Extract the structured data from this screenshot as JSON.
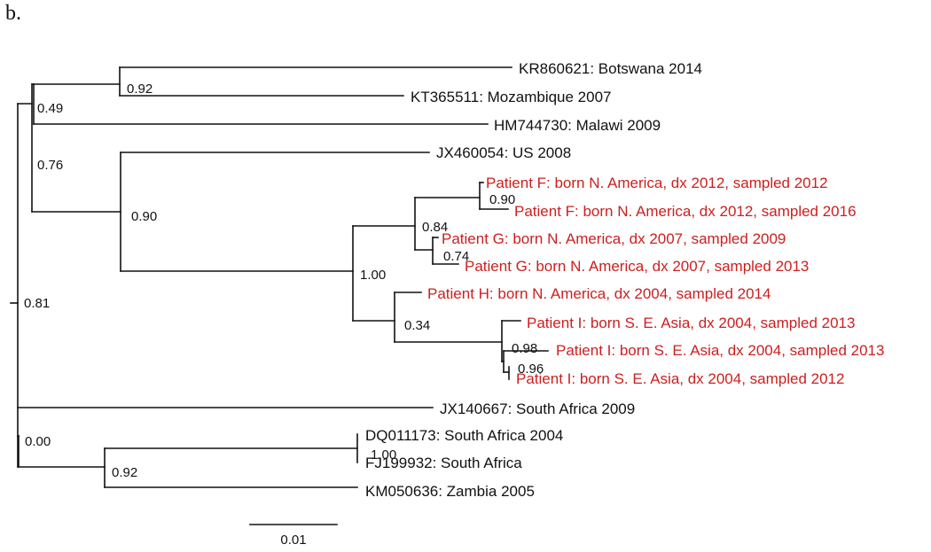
{
  "panel_label": "b.",
  "colors": {
    "default": "#111111",
    "highlight": "#cc1f1f"
  },
  "tree": {
    "leaves": [
      {
        "id": "kr860621",
        "label": "KR860621: Botswana 2014",
        "highlight": false
      },
      {
        "id": "kt365511",
        "label": "KT365511: Mozambique 2007",
        "highlight": false
      },
      {
        "id": "hm744730",
        "label": "HM744730: Malawi 2009",
        "highlight": false
      },
      {
        "id": "jx460054",
        "label": "JX460054: US 2008",
        "highlight": false
      },
      {
        "id": "patient-f-2012",
        "label": "Patient F: born N. America, dx 2012, sampled 2012",
        "highlight": true
      },
      {
        "id": "patient-f-2016",
        "label": "Patient F: born N. America, dx 2012, sampled 2016",
        "highlight": true
      },
      {
        "id": "patient-g-2009",
        "label": "Patient G: born N. America, dx 2007, sampled 2009",
        "highlight": true
      },
      {
        "id": "patient-g-2013",
        "label": "Patient G: born N. America, dx 2007, sampled 2013",
        "highlight": true
      },
      {
        "id": "patient-h-2014",
        "label": "Patient H: born N. America, dx 2004, sampled 2014",
        "highlight": true
      },
      {
        "id": "patient-i-2013-a",
        "label": "Patient I: born S. E. Asia, dx 2004, sampled 2013",
        "highlight": true
      },
      {
        "id": "patient-i-2013-b",
        "label": "Patient I: born S. E. Asia, dx 2004, sampled 2013",
        "highlight": true
      },
      {
        "id": "patient-i-2012",
        "label": "Patient I: born S. E. Asia, dx 2004, sampled 2012",
        "highlight": true
      },
      {
        "id": "jx140667",
        "label": "JX140667: South Africa 2009",
        "highlight": false
      },
      {
        "id": "dq011173",
        "label": "DQ011173: South Africa 2004",
        "highlight": false
      },
      {
        "id": "fj199932",
        "label": "FJ199932: South Africa",
        "highlight": false
      },
      {
        "id": "km050636",
        "label": "KM050636: Zambia 2005",
        "highlight": false
      }
    ],
    "support_values": [
      {
        "node": "root",
        "value": "0.81"
      },
      {
        "node": "botswana-mozambique",
        "value": "0.92"
      },
      {
        "node": "southern-africa-clade",
        "value": "0.49"
      },
      {
        "node": "north-clade",
        "value": "0.76"
      },
      {
        "node": "us-patients",
        "value": "0.90"
      },
      {
        "node": "patients-all",
        "value": "1.00"
      },
      {
        "node": "patients-fg",
        "value": "0.84"
      },
      {
        "node": "patient-f",
        "value": "0.90"
      },
      {
        "node": "patient-g",
        "value": "0.74"
      },
      {
        "node": "patients-hi",
        "value": "0.34"
      },
      {
        "node": "patient-i-all",
        "value": "0.98"
      },
      {
        "node": "patient-i-pair",
        "value": "0.96"
      },
      {
        "node": "south-clade",
        "value": "0.00"
      },
      {
        "node": "dq-fj-km",
        "value": "0.92"
      },
      {
        "node": "dq-fj",
        "value": "1.00"
      }
    ],
    "scale_bar": {
      "value": 0.01,
      "label": "0.01"
    }
  }
}
